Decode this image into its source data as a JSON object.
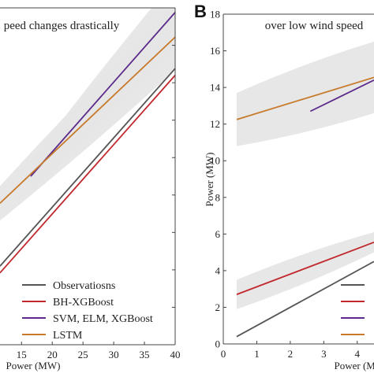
{
  "chart_data": [
    {
      "type": "line",
      "title": "peed changes drastically",
      "xlabel": "Power (MW)",
      "ylabel": "",
      "xlim": [
        11.5,
        40
      ],
      "ylim": [
        0,
        45
      ],
      "xticks": [
        15,
        20,
        25,
        30,
        35,
        40
      ],
      "xtick_labels": [
        "15",
        "20",
        "25",
        "30",
        "35",
        "40"
      ],
      "yticks": [],
      "grid": false,
      "legend": "lower-right",
      "series": [
        {
          "name": "Observatiosns",
          "color": "#555555",
          "x": [
            11.5,
            40
          ],
          "y": [
            10.5,
            36.9
          ],
          "band": false
        },
        {
          "name": "BH-XGBoost",
          "color": "#c0282d",
          "x": [
            11.5,
            40
          ],
          "y": [
            9.6,
            36.0
          ],
          "band": false
        },
        {
          "name": "SVM, ELM, XGBoost",
          "color": "#5b2a8a",
          "x": [
            16.5,
            40
          ],
          "y": [
            22.5,
            44.4
          ],
          "band": true,
          "band_lower": [
            20.5,
            40.0
          ],
          "band_upper": [
            24.5,
            48.8
          ]
        },
        {
          "name": "LSTM",
          "color": "#c77a2c",
          "x": [
            11.5,
            40
          ],
          "y": [
            18.9,
            41.1
          ],
          "band": true,
          "band_lower": [
            16.6,
            36.7
          ],
          "band_upper": [
            21.2,
            45.5
          ]
        }
      ]
    },
    {
      "type": "line",
      "panel_label": "B",
      "title": "over low wind speed",
      "xlabel": "Power (MW)",
      "ylabel": "Power (MW)",
      "xlim": [
        0,
        4.5
      ],
      "ylim": [
        0,
        18
      ],
      "xticks": [
        0,
        1,
        2,
        3,
        4
      ],
      "xtick_labels": [
        "0",
        "1",
        "2",
        "3",
        "4"
      ],
      "yticks": [
        0,
        2,
        4,
        6,
        8,
        10,
        12,
        14,
        16,
        18
      ],
      "ytick_labels": [
        "0",
        "2",
        "4",
        "6",
        "8",
        "10",
        "12",
        "14",
        "16",
        "18"
      ],
      "grid": false,
      "legend": "lower-right",
      "series": [
        {
          "color": "#555555",
          "x": [
            0.4,
            4.5
          ],
          "y": [
            0.4,
            4.5
          ],
          "band": false
        },
        {
          "color": "#c0282d",
          "x": [
            0.4,
            4.5
          ],
          "y": [
            2.7,
            5.55
          ],
          "band": true,
          "band_lower": [
            1.9,
            5.0
          ],
          "band_upper": [
            3.5,
            6.1
          ]
        },
        {
          "color": "#5b2a8a",
          "x": [
            2.6,
            4.5
          ],
          "y": [
            12.7,
            14.4
          ],
          "band": false
        },
        {
          "color": "#c77a2c",
          "x": [
            0.4,
            4.5
          ],
          "y": [
            12.25,
            14.55
          ],
          "band": true,
          "band_lower": [
            10.8,
            12.6
          ],
          "band_upper": [
            13.7,
            16.5
          ]
        }
      ]
    }
  ]
}
